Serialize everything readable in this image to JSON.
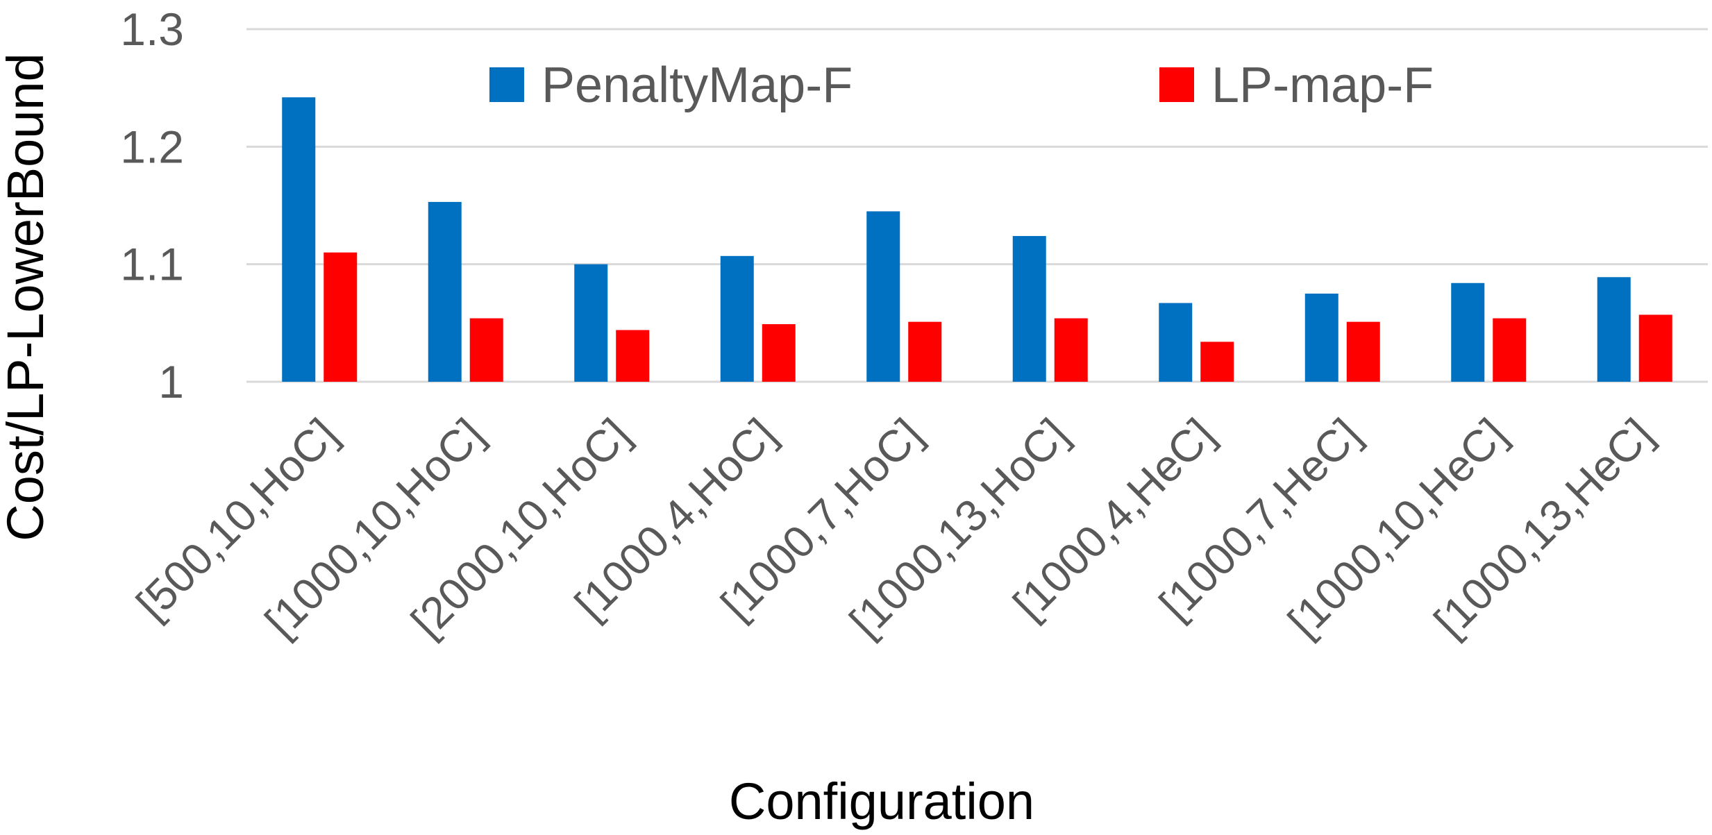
{
  "chart_data": {
    "type": "bar",
    "title": "",
    "xlabel": "Configuration",
    "ylabel": "Cost/LP-LowerBound",
    "ylim": [
      1,
      1.3
    ],
    "yticks": [
      "1",
      "1.1",
      "1.2",
      "1.3"
    ],
    "ytick_values": [
      1,
      1.1,
      1.2,
      1.3
    ],
    "grid": true,
    "legend_position": "top",
    "categories": [
      "[500,10,HoC]",
      "[1000,10,HoC]",
      "[2000,10,HoC]",
      "[1000,4,HoC]",
      "[1000,7,HoC]",
      "[1000,13,HoC]",
      "[1000,4,HeC]",
      "[1000,7,HeC]",
      "[1000,10,HeC]",
      "[1000,13,HeC]"
    ],
    "series": [
      {
        "name": "PenaltyMap-F",
        "color": "#0070c0",
        "values": [
          1.242,
          1.153,
          1.1,
          1.107,
          1.145,
          1.124,
          1.067,
          1.075,
          1.084,
          1.089
        ]
      },
      {
        "name": "LP-map-F",
        "color": "#ff0000",
        "values": [
          1.11,
          1.054,
          1.044,
          1.049,
          1.051,
          1.054,
          1.034,
          1.051,
          1.054,
          1.057
        ]
      }
    ]
  }
}
